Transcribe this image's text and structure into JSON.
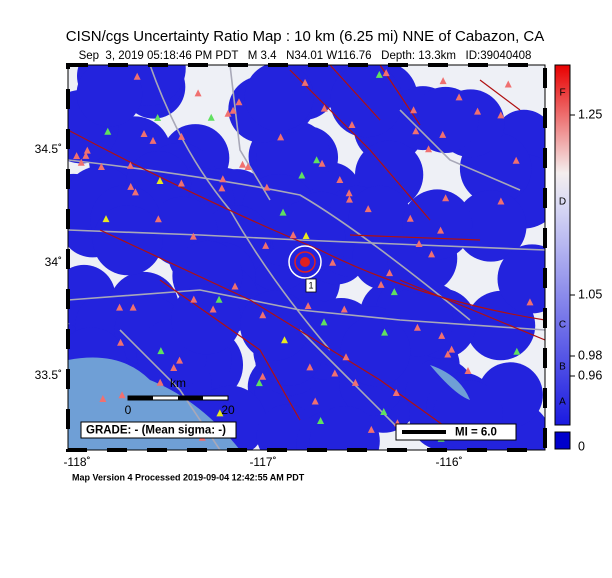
{
  "header": {
    "title": "CISN/cgs Uncertainty Ratio Map : 10 km (6.25 mi) NNE of Cabazon, CA",
    "subtitle": "Sep  3, 2019 05:18:46 PM PDT   M 3.4   N34.01 W116.76   Depth: 13.3km   ID:39040408"
  },
  "map": {
    "lat_labels": [
      "34.5˚",
      "34˚",
      "33.5˚"
    ],
    "lon_labels": [
      "-118˚",
      "-117˚",
      "-116˚"
    ],
    "epicenter_label": "1",
    "scale_bar": {
      "unit": "km",
      "labels": [
        "0",
        "20"
      ]
    },
    "grade_box": "GRADE: - (Mean sigma: -)",
    "mi_legend": "MI = 6.0"
  },
  "colorbar": {
    "tick_labels": [
      "1.25",
      "1.05",
      "0.98",
      "0.96",
      "0"
    ],
    "grades": [
      "F",
      "D",
      "C",
      "B",
      "A"
    ]
  },
  "footer": "Map Version 4 Processed 2019-09-04 12:42:55 AM PDT"
}
